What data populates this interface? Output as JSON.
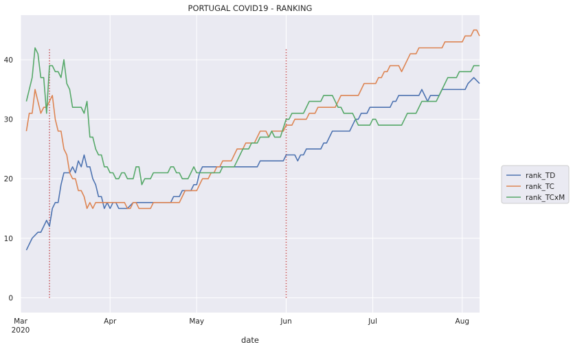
{
  "chart_data": {
    "type": "line",
    "title": "PORTUGAL COVID19 - RANKING",
    "xlabel": "date",
    "ylabel": "",
    "x_range": [
      "2020-03-01",
      "2020-08-07"
    ],
    "ylim": [
      -2.5,
      47.5
    ],
    "y_ticks": [
      0,
      10,
      20,
      30,
      40
    ],
    "x_ticks": [
      {
        "date": "2020-03-01",
        "label": "Mar",
        "sublabel": "2020"
      },
      {
        "date": "2020-04-01",
        "label": "Apr"
      },
      {
        "date": "2020-05-01",
        "label": "May"
      },
      {
        "date": "2020-06-01",
        "label": "Jun"
      },
      {
        "date": "2020-07-01",
        "label": "Jul"
      },
      {
        "date": "2020-08-01",
        "label": "Aug"
      }
    ],
    "vlines": [
      {
        "date": "2020-03-11",
        "y0": 0,
        "y1": 42,
        "color": "#c44e52",
        "style": "dotted"
      },
      {
        "date": "2020-06-01",
        "y0": 0,
        "y1": 42,
        "color": "#c44e52",
        "style": "dotted"
      }
    ],
    "grid": true,
    "legend_position": "right, outside",
    "series": [
      {
        "name": "rank_TD",
        "color": "#4c72b0",
        "points": [
          [
            "2020-03-03",
            8
          ],
          [
            "2020-03-05",
            10
          ],
          [
            "2020-03-07",
            11
          ],
          [
            "2020-03-08",
            11
          ],
          [
            "2020-03-10",
            13
          ],
          [
            "2020-03-11",
            12
          ],
          [
            "2020-03-12",
            15
          ],
          [
            "2020-03-13",
            16
          ],
          [
            "2020-03-14",
            16
          ],
          [
            "2020-03-15",
            19
          ],
          [
            "2020-03-16",
            21
          ],
          [
            "2020-03-18",
            21
          ],
          [
            "2020-03-19",
            22
          ],
          [
            "2020-03-20",
            21
          ],
          [
            "2020-03-21",
            23
          ],
          [
            "2020-03-22",
            22
          ],
          [
            "2020-03-23",
            24
          ],
          [
            "2020-03-24",
            22
          ],
          [
            "2020-03-25",
            22
          ],
          [
            "2020-03-26",
            20
          ],
          [
            "2020-03-27",
            19
          ],
          [
            "2020-03-28",
            17
          ],
          [
            "2020-03-29",
            17
          ],
          [
            "2020-03-30",
            15
          ],
          [
            "2020-03-31",
            16
          ],
          [
            "2020-04-01",
            15
          ],
          [
            "2020-04-02",
            16
          ],
          [
            "2020-04-03",
            16
          ],
          [
            "2020-04-04",
            15
          ],
          [
            "2020-04-07",
            15
          ],
          [
            "2020-04-09",
            16
          ],
          [
            "2020-04-22",
            16
          ],
          [
            "2020-04-23",
            17
          ],
          [
            "2020-04-25",
            17
          ],
          [
            "2020-04-26",
            18
          ],
          [
            "2020-04-29",
            18
          ],
          [
            "2020-04-30",
            19
          ],
          [
            "2020-05-01",
            19
          ],
          [
            "2020-05-02",
            21
          ],
          [
            "2020-05-03",
            22
          ],
          [
            "2020-05-22",
            22
          ],
          [
            "2020-05-23",
            23
          ],
          [
            "2020-05-31",
            23
          ],
          [
            "2020-06-01",
            24
          ],
          [
            "2020-06-04",
            24
          ],
          [
            "2020-06-05",
            23
          ],
          [
            "2020-06-06",
            24
          ],
          [
            "2020-06-07",
            24
          ],
          [
            "2020-06-08",
            25
          ],
          [
            "2020-06-13",
            25
          ],
          [
            "2020-06-14",
            26
          ],
          [
            "2020-06-15",
            26
          ],
          [
            "2020-06-16",
            27
          ],
          [
            "2020-06-17",
            28
          ],
          [
            "2020-06-23",
            28
          ],
          [
            "2020-06-24",
            29
          ],
          [
            "2020-06-25",
            30
          ],
          [
            "2020-06-26",
            30
          ],
          [
            "2020-06-27",
            31
          ],
          [
            "2020-06-29",
            31
          ],
          [
            "2020-06-30",
            32
          ],
          [
            "2020-07-07",
            32
          ],
          [
            "2020-07-08",
            33
          ],
          [
            "2020-07-09",
            33
          ],
          [
            "2020-07-10",
            34
          ],
          [
            "2020-07-17",
            34
          ],
          [
            "2020-07-18",
            35
          ],
          [
            "2020-07-19",
            34
          ],
          [
            "2020-07-20",
            33
          ],
          [
            "2020-07-21",
            34
          ],
          [
            "2020-07-24",
            34
          ],
          [
            "2020-07-25",
            35
          ],
          [
            "2020-08-02",
            35
          ],
          [
            "2020-08-03",
            36
          ],
          [
            "2020-08-05",
            37
          ],
          [
            "2020-08-07",
            36
          ]
        ]
      },
      {
        "name": "rank_TC",
        "color": "#dd8452",
        "points": [
          [
            "2020-03-03",
            28
          ],
          [
            "2020-03-04",
            31
          ],
          [
            "2020-03-05",
            31
          ],
          [
            "2020-03-06",
            35
          ],
          [
            "2020-03-07",
            33
          ],
          [
            "2020-03-08",
            31
          ],
          [
            "2020-03-09",
            32
          ],
          [
            "2020-03-10",
            32
          ],
          [
            "2020-03-11",
            33
          ],
          [
            "2020-03-12",
            34
          ],
          [
            "2020-03-13",
            30
          ],
          [
            "2020-03-14",
            28
          ],
          [
            "2020-03-15",
            28
          ],
          [
            "2020-03-16",
            25
          ],
          [
            "2020-03-17",
            24
          ],
          [
            "2020-03-18",
            21
          ],
          [
            "2020-03-19",
            20
          ],
          [
            "2020-03-20",
            20
          ],
          [
            "2020-03-21",
            18
          ],
          [
            "2020-03-22",
            18
          ],
          [
            "2020-03-23",
            17
          ],
          [
            "2020-03-24",
            15
          ],
          [
            "2020-03-25",
            16
          ],
          [
            "2020-03-26",
            15
          ],
          [
            "2020-03-27",
            16
          ],
          [
            "2020-04-06",
            16
          ],
          [
            "2020-04-07",
            15
          ],
          [
            "2020-04-08",
            15
          ],
          [
            "2020-04-09",
            16
          ],
          [
            "2020-04-10",
            16
          ],
          [
            "2020-04-11",
            15
          ],
          [
            "2020-04-15",
            15
          ],
          [
            "2020-04-16",
            16
          ],
          [
            "2020-04-25",
            16
          ],
          [
            "2020-04-26",
            17
          ],
          [
            "2020-04-27",
            18
          ],
          [
            "2020-05-01",
            18
          ],
          [
            "2020-05-02",
            19
          ],
          [
            "2020-05-03",
            20
          ],
          [
            "2020-05-05",
            20
          ],
          [
            "2020-05-06",
            21
          ],
          [
            "2020-05-07",
            21
          ],
          [
            "2020-05-08",
            22
          ],
          [
            "2020-05-09",
            22
          ],
          [
            "2020-05-10",
            23
          ],
          [
            "2020-05-13",
            23
          ],
          [
            "2020-05-14",
            24
          ],
          [
            "2020-05-15",
            25
          ],
          [
            "2020-05-17",
            25
          ],
          [
            "2020-05-18",
            26
          ],
          [
            "2020-05-21",
            26
          ],
          [
            "2020-05-22",
            27
          ],
          [
            "2020-05-23",
            28
          ],
          [
            "2020-05-25",
            28
          ],
          [
            "2020-05-26",
            27
          ],
          [
            "2020-05-27",
            28
          ],
          [
            "2020-05-31",
            28
          ],
          [
            "2020-06-01",
            29
          ],
          [
            "2020-06-03",
            29
          ],
          [
            "2020-06-04",
            30
          ],
          [
            "2020-06-08",
            30
          ],
          [
            "2020-06-09",
            31
          ],
          [
            "2020-06-11",
            31
          ],
          [
            "2020-06-12",
            32
          ],
          [
            "2020-06-18",
            32
          ],
          [
            "2020-06-19",
            33
          ],
          [
            "2020-06-20",
            34
          ],
          [
            "2020-06-26",
            34
          ],
          [
            "2020-06-27",
            35
          ],
          [
            "2020-06-28",
            36
          ],
          [
            "2020-07-02",
            36
          ],
          [
            "2020-07-03",
            37
          ],
          [
            "2020-07-04",
            37
          ],
          [
            "2020-07-05",
            38
          ],
          [
            "2020-07-06",
            38
          ],
          [
            "2020-07-07",
            39
          ],
          [
            "2020-07-10",
            39
          ],
          [
            "2020-07-11",
            38
          ],
          [
            "2020-07-12",
            39
          ],
          [
            "2020-07-13",
            40
          ],
          [
            "2020-07-14",
            41
          ],
          [
            "2020-07-16",
            41
          ],
          [
            "2020-07-17",
            42
          ],
          [
            "2020-07-25",
            42
          ],
          [
            "2020-07-26",
            43
          ],
          [
            "2020-08-01",
            43
          ],
          [
            "2020-08-02",
            44
          ],
          [
            "2020-08-04",
            44
          ],
          [
            "2020-08-05",
            45
          ],
          [
            "2020-08-06",
            45
          ],
          [
            "2020-08-07",
            44
          ]
        ]
      },
      {
        "name": "rank_TCxM",
        "color": "#55a868",
        "points": [
          [
            "2020-03-03",
            33
          ],
          [
            "2020-03-05",
            37
          ],
          [
            "2020-03-06",
            42
          ],
          [
            "2020-03-07",
            41
          ],
          [
            "2020-03-08",
            37
          ],
          [
            "2020-03-09",
            37
          ],
          [
            "2020-03-10",
            31
          ],
          [
            "2020-03-11",
            39
          ],
          [
            "2020-03-12",
            39
          ],
          [
            "2020-03-13",
            38
          ],
          [
            "2020-03-14",
            38
          ],
          [
            "2020-03-15",
            37
          ],
          [
            "2020-03-16",
            40
          ],
          [
            "2020-03-17",
            36
          ],
          [
            "2020-03-18",
            35
          ],
          [
            "2020-03-19",
            32
          ],
          [
            "2020-03-22",
            32
          ],
          [
            "2020-03-23",
            31
          ],
          [
            "2020-03-24",
            33
          ],
          [
            "2020-03-25",
            27
          ],
          [
            "2020-03-26",
            27
          ],
          [
            "2020-03-27",
            25
          ],
          [
            "2020-03-28",
            24
          ],
          [
            "2020-03-29",
            24
          ],
          [
            "2020-03-30",
            22
          ],
          [
            "2020-03-31",
            22
          ],
          [
            "2020-04-01",
            21
          ],
          [
            "2020-04-02",
            21
          ],
          [
            "2020-04-03",
            20
          ],
          [
            "2020-04-04",
            20
          ],
          [
            "2020-04-05",
            21
          ],
          [
            "2020-04-06",
            21
          ],
          [
            "2020-04-07",
            20
          ],
          [
            "2020-04-09",
            20
          ],
          [
            "2020-04-10",
            22
          ],
          [
            "2020-04-11",
            22
          ],
          [
            "2020-04-12",
            19
          ],
          [
            "2020-04-13",
            20
          ],
          [
            "2020-04-15",
            20
          ],
          [
            "2020-04-16",
            21
          ],
          [
            "2020-04-21",
            21
          ],
          [
            "2020-04-22",
            22
          ],
          [
            "2020-04-23",
            22
          ],
          [
            "2020-04-24",
            21
          ],
          [
            "2020-04-25",
            21
          ],
          [
            "2020-04-26",
            20
          ],
          [
            "2020-04-28",
            20
          ],
          [
            "2020-04-30",
            22
          ],
          [
            "2020-05-01",
            21
          ],
          [
            "2020-05-09",
            21
          ],
          [
            "2020-05-10",
            22
          ],
          [
            "2020-05-14",
            22
          ],
          [
            "2020-05-15",
            23
          ],
          [
            "2020-05-16",
            24
          ],
          [
            "2020-05-17",
            25
          ],
          [
            "2020-05-19",
            25
          ],
          [
            "2020-05-20",
            26
          ],
          [
            "2020-05-22",
            26
          ],
          [
            "2020-05-23",
            27
          ],
          [
            "2020-05-26",
            27
          ],
          [
            "2020-05-27",
            28
          ],
          [
            "2020-05-28",
            27
          ],
          [
            "2020-05-30",
            27
          ],
          [
            "2020-06-01",
            30
          ],
          [
            "2020-06-02",
            30
          ],
          [
            "2020-06-03",
            31
          ],
          [
            "2020-06-07",
            31
          ],
          [
            "2020-06-08",
            32
          ],
          [
            "2020-06-09",
            33
          ],
          [
            "2020-06-13",
            33
          ],
          [
            "2020-06-14",
            34
          ],
          [
            "2020-06-17",
            34
          ],
          [
            "2020-06-18",
            33
          ],
          [
            "2020-06-19",
            32
          ],
          [
            "2020-06-20",
            32
          ],
          [
            "2020-06-21",
            31
          ],
          [
            "2020-06-24",
            31
          ],
          [
            "2020-06-25",
            30
          ],
          [
            "2020-06-26",
            29
          ],
          [
            "2020-06-30",
            29
          ],
          [
            "2020-07-01",
            30
          ],
          [
            "2020-07-02",
            30
          ],
          [
            "2020-07-03",
            29
          ],
          [
            "2020-07-11",
            29
          ],
          [
            "2020-07-12",
            30
          ],
          [
            "2020-07-13",
            31
          ],
          [
            "2020-07-16",
            31
          ],
          [
            "2020-07-17",
            32
          ],
          [
            "2020-07-18",
            33
          ],
          [
            "2020-07-23",
            33
          ],
          [
            "2020-07-24",
            34
          ],
          [
            "2020-07-25",
            35
          ],
          [
            "2020-07-26",
            36
          ],
          [
            "2020-07-27",
            37
          ],
          [
            "2020-07-30",
            37
          ],
          [
            "2020-07-31",
            38
          ],
          [
            "2020-08-04",
            38
          ],
          [
            "2020-08-05",
            39
          ],
          [
            "2020-08-07",
            39
          ]
        ]
      }
    ]
  }
}
